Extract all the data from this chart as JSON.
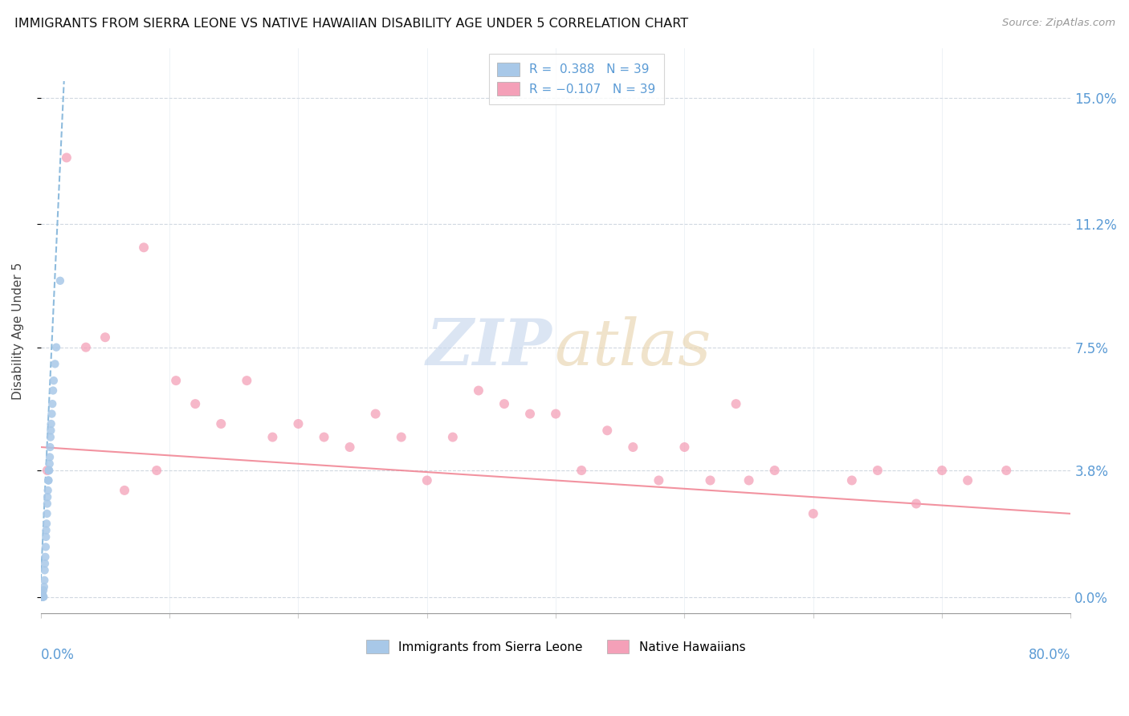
{
  "title": "IMMIGRANTS FROM SIERRA LEONE VS NATIVE HAWAIIAN DISABILITY AGE UNDER 5 CORRELATION CHART",
  "source": "Source: ZipAtlas.com",
  "ylabel": "Disability Age Under 5",
  "ytick_values": [
    0.0,
    3.8,
    7.5,
    11.2,
    15.0
  ],
  "xlim": [
    0.0,
    80.0
  ],
  "ylim": [
    -0.5,
    16.5
  ],
  "color_blue": "#a8c8e8",
  "color_pink": "#f4a0b8",
  "trendline_blue_color": "#7ab0d8",
  "trendline_pink_color": "#f08090",
  "watermark_zip_color": "#c8d8ee",
  "watermark_atlas_color": "#e8d5b0",
  "sierra_leone_x": [
    0.05,
    0.08,
    0.1,
    0.12,
    0.13,
    0.15,
    0.18,
    0.2,
    0.22,
    0.25,
    0.28,
    0.3,
    0.32,
    0.35,
    0.38,
    0.4,
    0.42,
    0.45,
    0.48,
    0.5,
    0.52,
    0.55,
    0.58,
    0.6,
    0.62,
    0.65,
    0.68,
    0.7,
    0.72,
    0.75,
    0.78,
    0.8,
    0.85,
    0.9,
    0.95,
    1.0,
    1.1,
    1.2,
    1.5
  ],
  "sierra_leone_y": [
    0.0,
    0.0,
    0.0,
    0.0,
    0.1,
    0.0,
    0.0,
    0.2,
    0.0,
    0.3,
    0.5,
    0.8,
    1.0,
    1.2,
    1.5,
    1.8,
    2.0,
    2.2,
    2.5,
    2.8,
    3.0,
    3.2,
    3.5,
    3.5,
    3.8,
    3.8,
    4.0,
    4.2,
    4.5,
    4.8,
    5.0,
    5.2,
    5.5,
    5.8,
    6.2,
    6.5,
    7.0,
    7.5,
    9.5
  ],
  "native_hawaiian_x": [
    0.5,
    2.0,
    3.5,
    5.0,
    6.5,
    8.0,
    9.0,
    10.5,
    12.0,
    14.0,
    16.0,
    18.0,
    20.0,
    22.0,
    24.0,
    26.0,
    28.0,
    30.0,
    32.0,
    34.0,
    36.0,
    38.0,
    40.0,
    42.0,
    44.0,
    46.0,
    48.0,
    50.0,
    52.0,
    54.0,
    55.0,
    57.0,
    60.0,
    63.0,
    65.0,
    68.0,
    70.0,
    72.0,
    75.0
  ],
  "native_hawaiian_y": [
    3.8,
    13.2,
    7.5,
    7.8,
    3.2,
    10.5,
    3.8,
    6.5,
    5.8,
    5.2,
    6.5,
    4.8,
    5.2,
    4.8,
    4.5,
    5.5,
    4.8,
    3.5,
    4.8,
    6.2,
    5.8,
    5.5,
    5.5,
    3.8,
    5.0,
    4.5,
    3.5,
    4.5,
    3.5,
    5.8,
    3.5,
    3.8,
    2.5,
    3.5,
    3.8,
    2.8,
    3.8,
    3.5,
    3.8
  ],
  "sl_trend_x": [
    0.0,
    1.8
  ],
  "sl_trend_y": [
    0.5,
    15.5
  ],
  "nh_trend_x": [
    0.0,
    80.0
  ],
  "nh_trend_y": [
    4.5,
    2.5
  ]
}
